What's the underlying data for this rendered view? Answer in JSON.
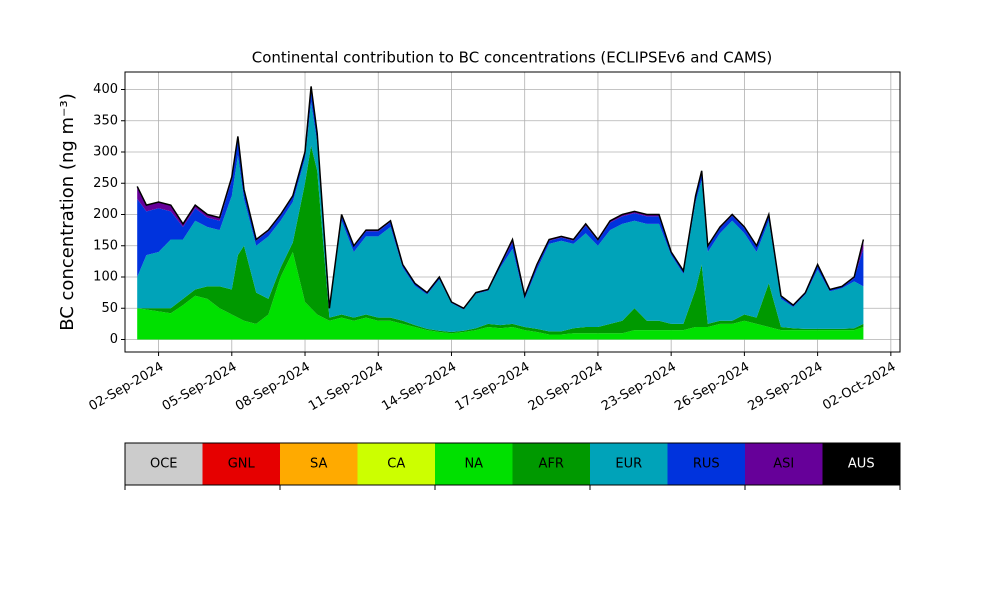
{
  "chart_data": {
    "type": "stacked_area",
    "title": "Continental contribution to BC concentrations (ECLIPSEv6 and CAMS)",
    "ylabel": "BC concentration (ng m⁻³)",
    "xlim": [
      "2024-08-31T15:00",
      "2024-10-02T09:00"
    ],
    "ylim": [
      -20,
      428
    ],
    "yticks": [
      0,
      50,
      100,
      150,
      200,
      250,
      300,
      350,
      400
    ],
    "xticks": [
      {
        "value": "2024-09-02T00:00",
        "label": "02-Sep-2024"
      },
      {
        "value": "2024-09-05T00:00",
        "label": "05-Sep-2024"
      },
      {
        "value": "2024-09-08T00:00",
        "label": "08-Sep-2024"
      },
      {
        "value": "2024-09-11T00:00",
        "label": "11-Sep-2024"
      },
      {
        "value": "2024-09-14T00:00",
        "label": "14-Sep-2024"
      },
      {
        "value": "2024-09-17T00:00",
        "label": "17-Sep-2024"
      },
      {
        "value": "2024-09-20T00:00",
        "label": "20-Sep-2024"
      },
      {
        "value": "2024-09-23T00:00",
        "label": "23-Sep-2024"
      },
      {
        "value": "2024-09-26T00:00",
        "label": "26-Sep-2024"
      },
      {
        "value": "2024-09-29T00:00",
        "label": "29-Sep-2024"
      },
      {
        "value": "2024-10-02T00:00",
        "label": "02-Oct-2024"
      }
    ],
    "grid": true,
    "x": [
      "2024-09-01T03:00",
      "2024-09-01T12:00",
      "2024-09-02T00:00",
      "2024-09-02T12:00",
      "2024-09-03T00:00",
      "2024-09-03T12:00",
      "2024-09-04T00:00",
      "2024-09-04T12:00",
      "2024-09-05T00:00",
      "2024-09-05T06:00",
      "2024-09-05T12:00",
      "2024-09-06T00:00",
      "2024-09-06T12:00",
      "2024-09-07T00:00",
      "2024-09-07T12:00",
      "2024-09-08T00:00",
      "2024-09-08T06:00",
      "2024-09-08T12:00",
      "2024-09-09T00:00",
      "2024-09-09T12:00",
      "2024-09-10T00:00",
      "2024-09-10T12:00",
      "2024-09-11T00:00",
      "2024-09-11T12:00",
      "2024-09-12T00:00",
      "2024-09-12T12:00",
      "2024-09-13T00:00",
      "2024-09-13T12:00",
      "2024-09-14T00:00",
      "2024-09-14T12:00",
      "2024-09-15T00:00",
      "2024-09-15T12:00",
      "2024-09-16T00:00",
      "2024-09-16T12:00",
      "2024-09-17T00:00",
      "2024-09-17T12:00",
      "2024-09-18T00:00",
      "2024-09-18T12:00",
      "2024-09-19T00:00",
      "2024-09-19T12:00",
      "2024-09-20T00:00",
      "2024-09-20T12:00",
      "2024-09-21T00:00",
      "2024-09-21T12:00",
      "2024-09-22T00:00",
      "2024-09-22T12:00",
      "2024-09-23T00:00",
      "2024-09-23T12:00",
      "2024-09-24T00:00",
      "2024-09-24T06:00",
      "2024-09-24T12:00",
      "2024-09-25T00:00",
      "2024-09-25T12:00",
      "2024-09-26T00:00",
      "2024-09-26T12:00",
      "2024-09-27T00:00",
      "2024-09-27T12:00",
      "2024-09-28T00:00",
      "2024-09-28T12:00",
      "2024-09-29T00:00",
      "2024-09-29T12:00",
      "2024-09-30T00:00",
      "2024-09-30T12:00",
      "2024-09-30T21:00"
    ],
    "series": [
      {
        "name": "OCE",
        "color": "#cccccc",
        "values": [
          0,
          0,
          0,
          0,
          0,
          0,
          0,
          0,
          0,
          0,
          0,
          0,
          0,
          0,
          0,
          0,
          0,
          0,
          0,
          0,
          0,
          0,
          0,
          0,
          0,
          0,
          0,
          0,
          0,
          0,
          0,
          0,
          0,
          0,
          0,
          0,
          0,
          0,
          0,
          0,
          0,
          0,
          0,
          0,
          0,
          0,
          0,
          0,
          0,
          0,
          0,
          0,
          0,
          0,
          0,
          0,
          0,
          0,
          0,
          0,
          0,
          0,
          0,
          0
        ]
      },
      {
        "name": "GNL",
        "color": "#e60000",
        "values": [
          0,
          0,
          0,
          0,
          0,
          0,
          0,
          0,
          0,
          0,
          0,
          0,
          0,
          0,
          0,
          0,
          0,
          0,
          0,
          0,
          0,
          0,
          0,
          0,
          0,
          0,
          0,
          0,
          0,
          0,
          0,
          0,
          0,
          0,
          0,
          0,
          0,
          0,
          0,
          0,
          0,
          0,
          0,
          0,
          0,
          0,
          0,
          0,
          0,
          0,
          0,
          0,
          0,
          0,
          0,
          0,
          0,
          0,
          0,
          0,
          0,
          0,
          0,
          0
        ]
      },
      {
        "name": "SA",
        "color": "#ffaa00",
        "values": [
          0,
          0,
          0,
          0,
          0,
          0,
          0,
          0,
          0,
          0,
          0,
          0,
          0,
          0,
          0,
          0,
          0,
          0,
          0,
          0,
          0,
          0,
          0,
          0,
          0,
          0,
          0,
          0,
          0,
          0,
          0,
          0,
          0,
          0,
          0,
          0,
          0,
          0,
          0,
          0,
          0,
          0,
          0,
          0,
          0,
          0,
          0,
          0,
          0,
          0,
          0,
          0,
          0,
          0,
          0,
          0,
          0,
          0,
          0,
          0,
          0,
          0,
          0,
          0
        ]
      },
      {
        "name": "CA",
        "color": "#ccff00",
        "values": [
          0,
          0,
          0,
          0,
          0,
          0,
          0,
          0,
          0,
          0,
          0,
          0,
          0,
          0,
          0,
          0,
          0,
          0,
          0,
          0,
          0,
          0,
          0,
          0,
          0,
          0,
          0,
          0,
          0,
          0,
          0,
          0,
          0,
          0,
          0,
          0,
          0,
          0,
          0,
          0,
          0,
          0,
          0,
          0,
          0,
          0,
          0,
          0,
          0,
          0,
          0,
          0,
          0,
          0,
          0,
          0,
          0,
          0,
          0,
          0,
          0,
          0,
          0,
          0
        ]
      },
      {
        "name": "NA",
        "color": "#00e000",
        "values": [
          50,
          48,
          45,
          42,
          55,
          70,
          65,
          50,
          40,
          35,
          30,
          25,
          40,
          100,
          140,
          60,
          50,
          40,
          30,
          35,
          30,
          35,
          30,
          30,
          25,
          20,
          15,
          12,
          10,
          12,
          15,
          20,
          18,
          20,
          15,
          12,
          8,
          8,
          10,
          10,
          10,
          10,
          10,
          15,
          15,
          15,
          15,
          15,
          20,
          20,
          20,
          25,
          25,
          30,
          25,
          20,
          15,
          15,
          15,
          15,
          15,
          15,
          15,
          20
        ]
      },
      {
        "name": "AFR",
        "color": "#009900",
        "values": [
          0,
          2,
          5,
          8,
          10,
          10,
          20,
          35,
          40,
          100,
          120,
          50,
          25,
          15,
          15,
          190,
          260,
          230,
          5,
          5,
          5,
          5,
          5,
          5,
          5,
          3,
          2,
          2,
          2,
          2,
          3,
          5,
          5,
          5,
          5,
          5,
          5,
          5,
          8,
          10,
          10,
          15,
          20,
          35,
          15,
          15,
          10,
          10,
          60,
          100,
          5,
          5,
          5,
          10,
          10,
          70,
          5,
          3,
          2,
          2,
          2,
          2,
          3,
          5
        ]
      },
      {
        "name": "EUR",
        "color": "#00a3b9",
        "values": [
          50,
          85,
          90,
          110,
          95,
          110,
          95,
          90,
          150,
          160,
          75,
          75,
          100,
          75,
          65,
          40,
          70,
          45,
          12,
          150,
          105,
          125,
          130,
          145,
          85,
          63,
          55,
          82,
          46,
          34,
          55,
          53,
          92,
          120,
          45,
          95,
          140,
          145,
          135,
          150,
          130,
          150,
          155,
          140,
          155,
          155,
          110,
          80,
          140,
          135,
          115,
          140,
          160,
          130,
          105,
          100,
          45,
          34,
          55,
          95,
          60,
          65,
          75,
          60
        ]
      },
      {
        "name": "RUS",
        "color": "#0033dd",
        "values": [
          125,
          70,
          70,
          45,
          20,
          20,
          15,
          15,
          25,
          25,
          12,
          8,
          8,
          8,
          8,
          8,
          20,
          12,
          2,
          8,
          8,
          8,
          8,
          8,
          4,
          3,
          2,
          3,
          1,
          1,
          1,
          1,
          3,
          10,
          3,
          5,
          5,
          5,
          5,
          12,
          8,
          12,
          12,
          12,
          12,
          12,
          4,
          4,
          8,
          12,
          8,
          8,
          8,
          8,
          8,
          8,
          4,
          2,
          2,
          6,
          2,
          2,
          5,
          60
        ]
      },
      {
        "name": "ASI",
        "color": "#660099",
        "values": [
          20,
          10,
          10,
          10,
          5,
          5,
          5,
          5,
          5,
          5,
          3,
          2,
          2,
          2,
          2,
          2,
          5,
          3,
          1,
          2,
          2,
          2,
          2,
          2,
          1,
          1,
          1,
          1,
          1,
          1,
          1,
          1,
          2,
          5,
          2,
          3,
          2,
          2,
          2,
          3,
          2,
          3,
          3,
          3,
          3,
          3,
          1,
          1,
          2,
          3,
          2,
          2,
          2,
          2,
          2,
          2,
          1,
          1,
          1,
          2,
          1,
          1,
          2,
          15
        ]
      },
      {
        "name": "AUS",
        "color": "#000000",
        "values": [
          0,
          0,
          0,
          0,
          0,
          0,
          0,
          0,
          0,
          0,
          0,
          0,
          0,
          0,
          0,
          0,
          0,
          0,
          0,
          0,
          0,
          0,
          0,
          0,
          0,
          0,
          0,
          0,
          0,
          0,
          0,
          0,
          0,
          0,
          0,
          0,
          0,
          0,
          0,
          0,
          0,
          0,
          0,
          0,
          0,
          0,
          0,
          0,
          0,
          0,
          0,
          0,
          0,
          0,
          0,
          0,
          0,
          0,
          0,
          0,
          0,
          0,
          0,
          0
        ]
      }
    ]
  }
}
